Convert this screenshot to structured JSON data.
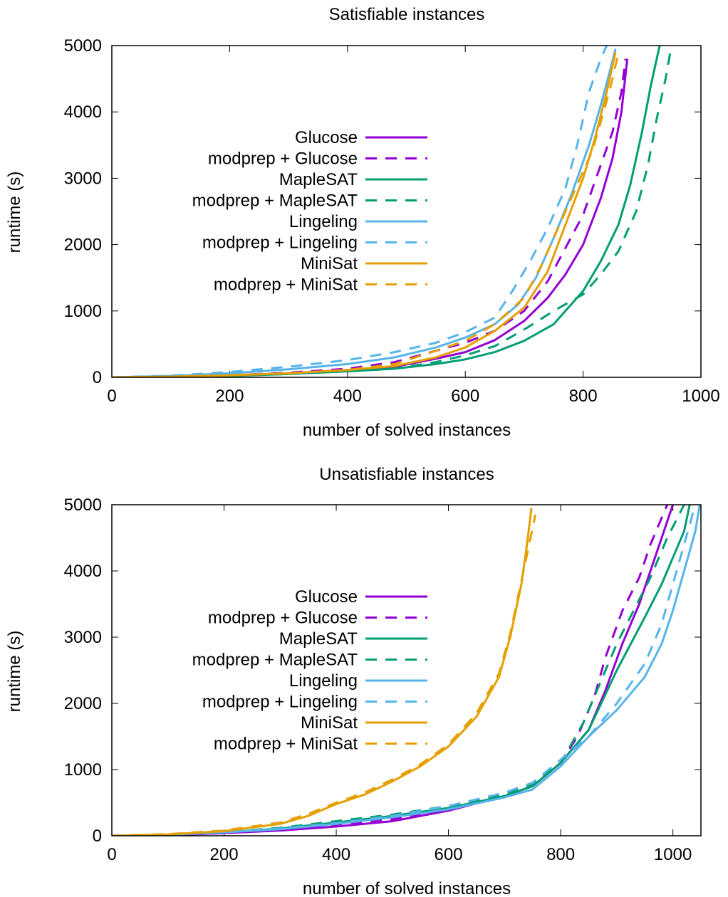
{
  "chart_data": [
    {
      "type": "line",
      "title": "Satisfiable instances",
      "xlabel": "number of solved instances",
      "ylabel": "runtime (s)",
      "xlim": [
        0,
        1000
      ],
      "ylim": [
        0,
        5000
      ],
      "xticks": [
        0,
        200,
        400,
        600,
        800,
        1000
      ],
      "yticks": [
        0,
        1000,
        2000,
        3000,
        4000,
        5000
      ],
      "grid": false,
      "legend": "center-left",
      "series": [
        {
          "name": "Glucose",
          "color": "#9400d3",
          "dash": false,
          "x": [
            0,
            100,
            200,
            300,
            400,
            480,
            550,
            600,
            650,
            700,
            740,
            770,
            800,
            830,
            850,
            865,
            875
          ],
          "y": [
            0,
            10,
            30,
            60,
            110,
            160,
            280,
            380,
            560,
            850,
            1200,
            1550,
            2000,
            2700,
            3300,
            4000,
            4800
          ]
        },
        {
          "name": "modprep + Glucose",
          "color": "#9400d3",
          "dash": true,
          "x": [
            0,
            100,
            200,
            300,
            400,
            480,
            550,
            600,
            650,
            700,
            740,
            770,
            800,
            830,
            850,
            865,
            872
          ],
          "y": [
            0,
            10,
            30,
            70,
            130,
            230,
            400,
            520,
            700,
            1000,
            1450,
            1950,
            2450,
            3200,
            3700,
            4300,
            4800
          ]
        },
        {
          "name": "MapleSAT",
          "color": "#009e73",
          "dash": false,
          "x": [
            0,
            100,
            200,
            300,
            400,
            480,
            550,
            600,
            650,
            700,
            750,
            800,
            830,
            860,
            880,
            900,
            915,
            930
          ],
          "y": [
            0,
            8,
            20,
            50,
            90,
            130,
            200,
            270,
            380,
            550,
            800,
            1300,
            1750,
            2300,
            2900,
            3700,
            4400,
            5000
          ]
        },
        {
          "name": "modprep + MapleSAT",
          "color": "#009e73",
          "dash": true,
          "x": [
            0,
            100,
            200,
            300,
            400,
            480,
            550,
            600,
            650,
            700,
            750,
            800,
            830,
            860,
            890,
            910,
            925,
            940,
            950
          ],
          "y": [
            0,
            8,
            20,
            50,
            90,
            130,
            230,
            330,
            470,
            720,
            1000,
            1250,
            1550,
            1900,
            2500,
            3200,
            3900,
            4500,
            5000
          ]
        },
        {
          "name": "Lingeling",
          "color": "#56b4e9",
          "dash": false,
          "x": [
            0,
            100,
            200,
            300,
            400,
            480,
            550,
            600,
            650,
            690,
            720,
            750,
            780,
            810,
            830,
            845,
            855
          ],
          "y": [
            0,
            20,
            60,
            120,
            200,
            300,
            450,
            600,
            800,
            1100,
            1500,
            2100,
            2750,
            3500,
            4100,
            4600,
            4950
          ]
        },
        {
          "name": "modprep + Lingeling",
          "color": "#56b4e9",
          "dash": true,
          "x": [
            0,
            100,
            200,
            300,
            400,
            480,
            550,
            600,
            650,
            680,
            710,
            740,
            770,
            790,
            810,
            830,
            840
          ],
          "y": [
            0,
            25,
            80,
            160,
            260,
            380,
            520,
            680,
            900,
            1300,
            1750,
            2250,
            2850,
            3500,
            4300,
            4800,
            5000
          ]
        },
        {
          "name": "MiniSat",
          "color": "#e69f00",
          "dash": false,
          "x": [
            0,
            100,
            200,
            300,
            400,
            480,
            550,
            600,
            650,
            700,
            740,
            770,
            800,
            820,
            840,
            855
          ],
          "y": [
            0,
            10,
            30,
            60,
            110,
            170,
            300,
            450,
            700,
            1050,
            1600,
            2300,
            3000,
            3600,
            4300,
            4900
          ]
        },
        {
          "name": "modprep + MiniSat",
          "color": "#e69f00",
          "dash": true,
          "x": [
            0,
            100,
            200,
            300,
            400,
            480,
            550,
            600,
            650,
            700,
            730,
            760,
            790,
            815,
            835,
            850,
            860
          ],
          "y": [
            0,
            10,
            30,
            60,
            110,
            200,
            400,
            550,
            800,
            1200,
            1700,
            2300,
            2900,
            3400,
            4000,
            4500,
            4900
          ]
        }
      ]
    },
    {
      "type": "line",
      "title": "Unsatisfiable instances",
      "xlabel": "number of solved instances",
      "ylabel": "runtime (s)",
      "xlim": [
        0,
        1050
      ],
      "ylim": [
        0,
        5000
      ],
      "xticks": [
        0,
        200,
        400,
        600,
        800,
        1000
      ],
      "yticks": [
        0,
        1000,
        2000,
        3000,
        4000,
        5000
      ],
      "grid": false,
      "legend": "center-left",
      "series": [
        {
          "name": "Glucose",
          "color": "#9400d3",
          "dash": false,
          "x": [
            0,
            100,
            200,
            300,
            400,
            500,
            600,
            700,
            750,
            800,
            850,
            880,
            910,
            940,
            960,
            980,
            1000
          ],
          "y": [
            0,
            10,
            40,
            80,
            140,
            220,
            380,
            600,
            750,
            1100,
            1600,
            2200,
            2900,
            3500,
            4000,
            4500,
            5000
          ]
        },
        {
          "name": "modprep + Glucose",
          "color": "#9400d3",
          "dash": true,
          "x": [
            0,
            100,
            200,
            300,
            400,
            500,
            600,
            700,
            750,
            800,
            830,
            860,
            880,
            910,
            940,
            960,
            990
          ],
          "y": [
            0,
            10,
            40,
            90,
            160,
            250,
            400,
            600,
            750,
            1100,
            1500,
            2100,
            2700,
            3400,
            3900,
            4400,
            5000
          ]
        },
        {
          "name": "MapleSAT",
          "color": "#009e73",
          "dash": false,
          "x": [
            0,
            100,
            200,
            300,
            400,
            500,
            600,
            700,
            750,
            800,
            850,
            900,
            950,
            980,
            1000,
            1020,
            1030
          ],
          "y": [
            0,
            15,
            50,
            110,
            200,
            300,
            420,
            600,
            750,
            1100,
            1600,
            2500,
            3300,
            3800,
            4200,
            4600,
            5000
          ]
        },
        {
          "name": "modprep + MapleSAT",
          "color": "#009e73",
          "dash": true,
          "x": [
            0,
            100,
            200,
            300,
            400,
            500,
            600,
            700,
            750,
            800,
            840,
            870,
            900,
            930,
            960,
            990,
            1020
          ],
          "y": [
            0,
            15,
            55,
            120,
            220,
            320,
            450,
            620,
            780,
            1100,
            1700,
            2300,
            2900,
            3400,
            3900,
            4500,
            5000
          ]
        },
        {
          "name": "Lingeling",
          "color": "#56b4e9",
          "dash": false,
          "x": [
            0,
            100,
            200,
            300,
            400,
            500,
            600,
            700,
            750,
            800,
            850,
            900,
            950,
            980,
            1000,
            1020,
            1040,
            1048
          ],
          "y": [
            0,
            15,
            50,
            100,
            180,
            280,
            400,
            580,
            700,
            1050,
            1500,
            1900,
            2400,
            2900,
            3400,
            4000,
            4600,
            5000
          ]
        },
        {
          "name": "modprep + Lingeling",
          "color": "#56b4e9",
          "dash": true,
          "x": [
            0,
            100,
            200,
            300,
            400,
            500,
            600,
            700,
            750,
            800,
            850,
            900,
            950,
            980,
            1000,
            1020,
            1040
          ],
          "y": [
            0,
            15,
            55,
            110,
            190,
            300,
            450,
            650,
            800,
            1150,
            1500,
            2000,
            2600,
            3200,
            3800,
            4400,
            5000
          ]
        },
        {
          "name": "MiniSat",
          "color": "#e69f00",
          "dash": false,
          "x": [
            0,
            100,
            200,
            300,
            350,
            400,
            450,
            500,
            550,
            600,
            650,
            690,
            710,
            730,
            740,
            748
          ],
          "y": [
            0,
            20,
            70,
            180,
            300,
            480,
            620,
            820,
            1050,
            1350,
            1800,
            2400,
            3000,
            3800,
            4400,
            4950
          ]
        },
        {
          "name": "modprep + MiniSat",
          "color": "#e69f00",
          "dash": true,
          "x": [
            0,
            100,
            200,
            300,
            350,
            400,
            450,
            500,
            550,
            600,
            650,
            690,
            710,
            730,
            745,
            755
          ],
          "y": [
            0,
            25,
            80,
            200,
            330,
            500,
            650,
            850,
            1080,
            1380,
            1850,
            2450,
            3050,
            3850,
            4450,
            4850
          ]
        }
      ]
    }
  ]
}
